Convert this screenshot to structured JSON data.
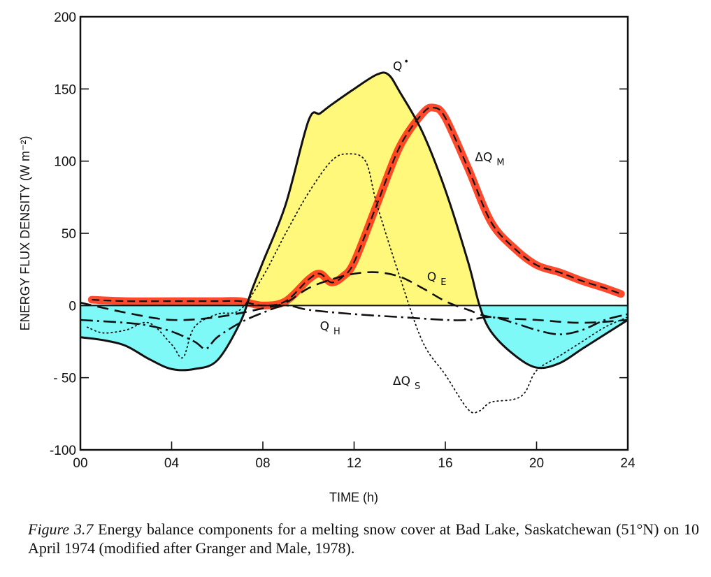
{
  "chart_data": {
    "type": "line",
    "title": "",
    "xlabel": "TIME (h)",
    "ylabel": "ENERGY FLUX DENSITY (W m⁻²)",
    "xlim": [
      0,
      24
    ],
    "ylim": [
      -100,
      200
    ],
    "x_ticks": [
      0,
      4,
      8,
      12,
      16,
      20,
      24
    ],
    "x_tick_labels": [
      "00",
      "04",
      "08",
      "12",
      "16",
      "20",
      "24"
    ],
    "y_ticks": [
      200,
      150,
      100,
      50,
      0,
      -50,
      -100
    ],
    "y_tick_labels": [
      "200",
      "150",
      "100",
      "50",
      "0",
      "- 50",
      "-100"
    ],
    "grid": false,
    "series": [
      {
        "name": "Q*",
        "label_main": "Q",
        "label_sub": "•",
        "style": "solid",
        "x": [
          0,
          1,
          2,
          3,
          4,
          5,
          6,
          7,
          7.5,
          8,
          9,
          10,
          10.5,
          11,
          12,
          13,
          13.5,
          14,
          15,
          16,
          17,
          17.5,
          18,
          19,
          20,
          21,
          22,
          23,
          24
        ],
        "values": [
          -22,
          -24,
          -28,
          -37,
          -44,
          -44,
          -38,
          -12,
          10,
          30,
          70,
          128,
          133,
          139,
          150,
          160,
          160,
          148,
          120,
          80,
          30,
          0,
          -18,
          -34,
          -43,
          -40,
          -30,
          -20,
          -10
        ]
      },
      {
        "name": "ΔQM",
        "label_main": "ΔQ",
        "label_sub": "M",
        "style": "dashed-highlighted",
        "x": [
          0.5,
          2,
          4,
          6,
          7,
          8,
          9,
          10,
          10.5,
          11,
          11.5,
          12,
          13,
          14,
          15,
          15.5,
          16,
          17,
          18,
          19,
          20,
          21,
          22,
          23,
          23.7
        ],
        "values": [
          4,
          3,
          3,
          3,
          3,
          0,
          3,
          18,
          22,
          16,
          20,
          30,
          70,
          110,
          133,
          137,
          130,
          95,
          58,
          40,
          28,
          23,
          17,
          12,
          8
        ]
      },
      {
        "name": "ΔQS",
        "label_main": "ΔQ",
        "label_sub": "S",
        "style": "dotted",
        "x": [
          0.3,
          1,
          2,
          3,
          4,
          4.5,
          5,
          6,
          7,
          8,
          9,
          10,
          11,
          11.7,
          12.5,
          13,
          14,
          15,
          16,
          17,
          17.5,
          18,
          19,
          19.5,
          20,
          21,
          22,
          23,
          24
        ],
        "values": [
          -15,
          -19,
          -17,
          -12,
          -27,
          -36,
          -15,
          -6,
          -3,
          20,
          50,
          78,
          100,
          105,
          100,
          70,
          20,
          -25,
          -48,
          -72,
          -73,
          -67,
          -65,
          -60,
          -45,
          -35,
          -25,
          -15,
          -8
        ]
      },
      {
        "name": "QE",
        "label_main": "Q",
        "label_sub": "E",
        "style": "dashed",
        "x": [
          0,
          2,
          4,
          6,
          8,
          9,
          10,
          11,
          12,
          13,
          14,
          15,
          16,
          17,
          18,
          20,
          22,
          24
        ],
        "values": [
          2,
          -5,
          -10,
          -8,
          -2,
          2,
          12,
          18,
          22,
          23,
          20,
          12,
          3,
          -3,
          -8,
          -10,
          -12,
          -10
        ]
      },
      {
        "name": "QH",
        "label_main": "Q",
        "label_sub": "H",
        "style": "dash-dot",
        "x": [
          0,
          2,
          3,
          4,
          5,
          5.5,
          6,
          7,
          8,
          9,
          10,
          12,
          14,
          16,
          17,
          18,
          19,
          20,
          21,
          22,
          23,
          24
        ],
        "values": [
          -10,
          -12,
          -14,
          -18,
          -25,
          -30,
          -22,
          -12,
          -5,
          0,
          -3,
          -6,
          -8,
          -10,
          -10,
          -8,
          -12,
          -17,
          -20,
          -17,
          -10,
          -6
        ]
      }
    ],
    "fills": {
      "positive_Q_star": "#fff87a",
      "negative_Q_star": "#7ff8f8",
      "melt_highlight": "#ff3a1a"
    },
    "annotations": []
  },
  "caption": {
    "figure_label": "Figure 3.7",
    "text": " Energy balance components for a melting snow cover at Bad Lake, Saskatchewan (51°N) on 10 April 1974 (modified after Granger and Male, 1978)."
  }
}
